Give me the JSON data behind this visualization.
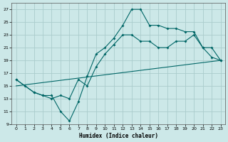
{
  "background_color": "#cce8e8",
  "grid_color": "#aacccc",
  "line_color": "#006666",
  "xlabel": "Humidex (Indice chaleur)",
  "xlim": [
    -0.5,
    23.5
  ],
  "ylim": [
    9,
    28
  ],
  "yticks": [
    9,
    11,
    13,
    15,
    17,
    19,
    21,
    23,
    25,
    27
  ],
  "xticks": [
    0,
    1,
    2,
    3,
    4,
    5,
    6,
    7,
    8,
    9,
    10,
    11,
    12,
    13,
    14,
    15,
    16,
    17,
    18,
    19,
    20,
    21,
    22,
    23
  ],
  "line1_x": [
    0,
    1,
    2,
    3,
    4,
    5,
    6,
    7,
    8,
    9,
    10,
    11,
    12,
    13,
    14,
    15,
    16,
    17,
    18,
    19,
    20,
    21,
    22,
    23
  ],
  "line1_y": [
    16,
    15,
    14,
    13.5,
    13.5,
    11,
    9.5,
    12.5,
    16.5,
    20,
    21,
    22.5,
    24.5,
    27,
    27,
    24.5,
    24.5,
    24,
    24,
    23.5,
    23.5,
    21,
    19.5,
    19
  ],
  "line2_x": [
    0,
    2,
    3,
    4,
    5,
    6,
    7,
    8,
    9,
    10,
    11,
    12,
    13,
    14,
    15,
    16,
    17,
    18,
    19,
    20,
    21,
    22,
    23
  ],
  "line2_y": [
    16,
    14,
    13.5,
    13,
    13.5,
    13,
    16,
    15,
    18,
    20,
    21.5,
    23,
    23,
    22,
    22,
    21,
    21,
    22,
    22,
    23,
    21,
    21,
    19
  ],
  "line3_x": [
    0,
    23
  ],
  "line3_y": [
    15,
    19
  ]
}
